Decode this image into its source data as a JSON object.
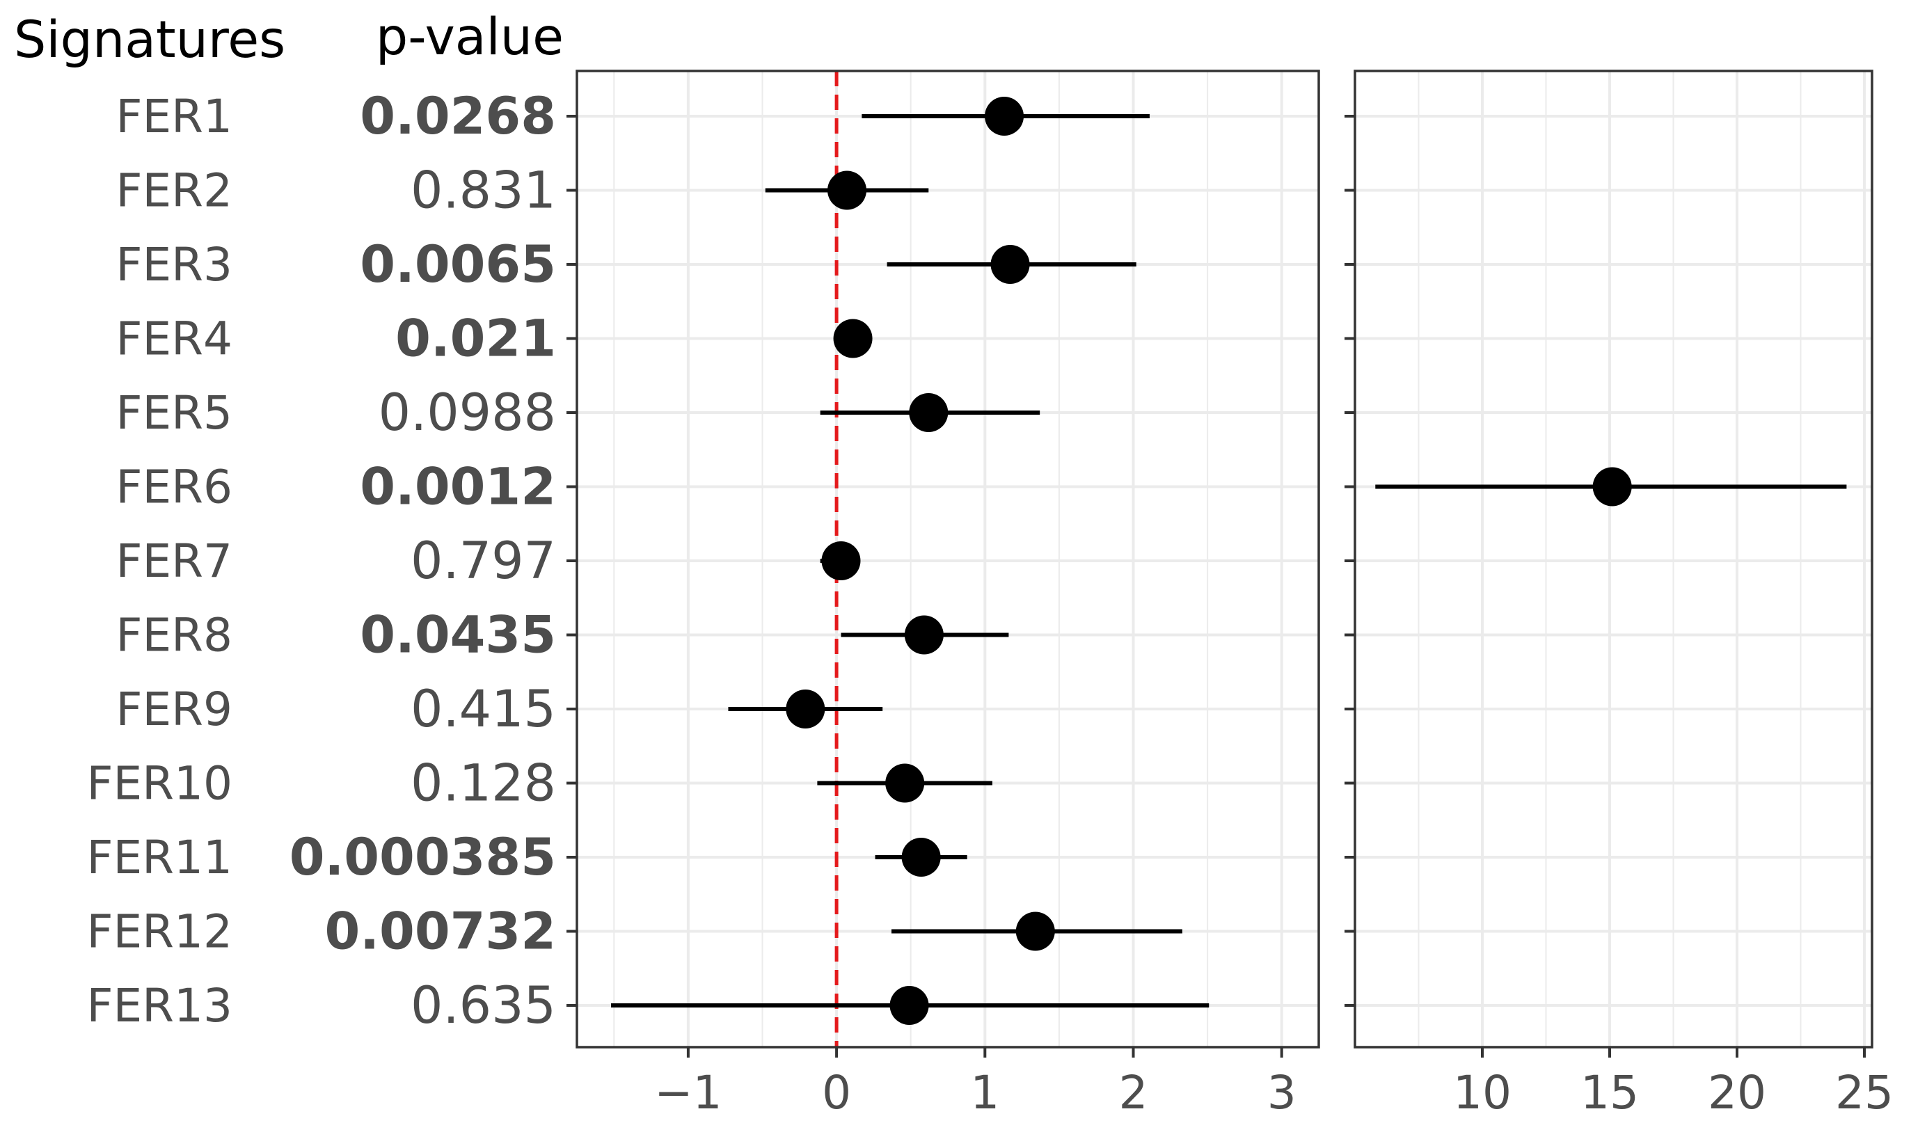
{
  "chart_data": {
    "type": "forest",
    "headers": {
      "signatures": "Signatures",
      "pvalue": "p-value"
    },
    "rows": [
      {
        "label": "FER1",
        "p_value": "0.0268",
        "significant": true,
        "estimate": 1.13,
        "ci_low": 0.17,
        "ci_high": 2.11,
        "panel": "left"
      },
      {
        "label": "FER2",
        "p_value": "0.831",
        "significant": false,
        "estimate": 0.07,
        "ci_low": -0.48,
        "ci_high": 0.62,
        "panel": "left"
      },
      {
        "label": "FER3",
        "p_value": "0.0065",
        "significant": true,
        "estimate": 1.17,
        "ci_low": 0.34,
        "ci_high": 2.02,
        "panel": "left"
      },
      {
        "label": "FER4",
        "p_value": "0.021",
        "significant": true,
        "estimate": 0.11,
        "ci_low": 0.02,
        "ci_high": 0.2,
        "panel": "left"
      },
      {
        "label": "FER5",
        "p_value": "0.0988",
        "significant": false,
        "estimate": 0.62,
        "ci_low": -0.11,
        "ci_high": 1.37,
        "panel": "left"
      },
      {
        "label": "FER6",
        "p_value": "0.0012",
        "significant": true,
        "estimate": 15.1,
        "ci_low": 5.8,
        "ci_high": 24.3,
        "panel": "right"
      },
      {
        "label": "FER7",
        "p_value": "0.797",
        "significant": false,
        "estimate": 0.03,
        "ci_low": -0.11,
        "ci_high": 0.13,
        "panel": "left"
      },
      {
        "label": "FER8",
        "p_value": "0.0435",
        "significant": true,
        "estimate": 0.59,
        "ci_low": 0.03,
        "ci_high": 1.16,
        "panel": "left"
      },
      {
        "label": "FER9",
        "p_value": "0.415",
        "significant": false,
        "estimate": -0.21,
        "ci_low": -0.73,
        "ci_high": 0.31,
        "panel": "left"
      },
      {
        "label": "FER10",
        "p_value": "0.128",
        "significant": false,
        "estimate": 0.46,
        "ci_low": -0.13,
        "ci_high": 1.05,
        "panel": "left"
      },
      {
        "label": "FER11",
        "p_value": "0.000385",
        "significant": true,
        "estimate": 0.57,
        "ci_low": 0.26,
        "ci_high": 0.88,
        "panel": "left"
      },
      {
        "label": "FER12",
        "p_value": "0.00732",
        "significant": true,
        "estimate": 1.34,
        "ci_low": 0.37,
        "ci_high": 2.33,
        "panel": "left"
      },
      {
        "label": "FER13",
        "p_value": "0.635",
        "significant": false,
        "estimate": 0.49,
        "ci_low": -1.52,
        "ci_high": 2.51,
        "panel": "left"
      }
    ],
    "panels": {
      "left": {
        "xlim": [
          -1.75,
          3.25
        ],
        "ticks": [
          -1,
          0,
          1,
          2,
          3
        ],
        "tick_labels": [
          "−1",
          "0",
          "1",
          "2",
          "3"
        ]
      },
      "right": {
        "xlim": [
          5,
          25.3
        ],
        "ticks": [
          10,
          15,
          20,
          25
        ],
        "tick_labels": [
          "10",
          "15",
          "20",
          "25"
        ]
      }
    },
    "reference_line": {
      "x": 0,
      "color": "#e41a1c",
      "style": "dashed"
    },
    "grid": true,
    "colors": {
      "point": "#000000",
      "text_muted": "#4d4d4d",
      "grid": "#ebebeb",
      "panel_border": "#333333"
    }
  }
}
